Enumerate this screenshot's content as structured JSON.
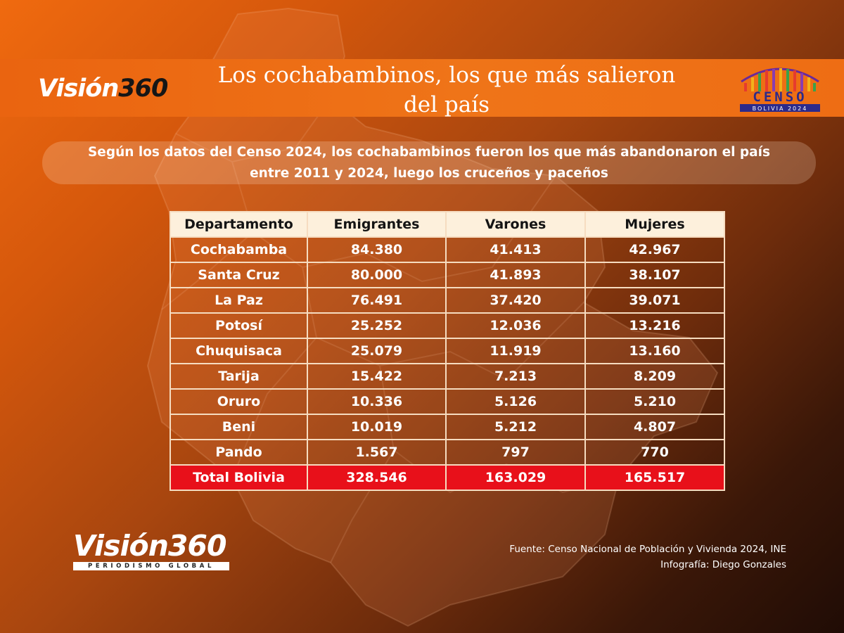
{
  "header": {
    "logo_word": "Visión",
    "logo_number": "360",
    "title_line1": "Los cochabambinos, los que más salieron",
    "title_line2": "del país",
    "censo_word": "CENSO",
    "censo_sub": "BOLIVIA 2024"
  },
  "subtitle": {
    "line1": "Según los datos del Censo 2024, los cochabambinos fueron los que más abandonaron el país",
    "line2": "entre 2011 y 2024, luego los cruceños y paceños"
  },
  "chart_data": {
    "type": "table",
    "columns": [
      "Departamento",
      "Emigrantes",
      "Varones",
      "Mujeres"
    ],
    "rows": [
      [
        "Cochabamba",
        "84.380",
        "41.413",
        "42.967"
      ],
      [
        "Santa Cruz",
        "80.000",
        "41.893",
        "38.107"
      ],
      [
        "La Paz",
        "76.491",
        "37.420",
        "39.071"
      ],
      [
        "Potosí",
        "25.252",
        "12.036",
        "13.216"
      ],
      [
        "Chuquisaca",
        "25.079",
        "11.919",
        "13.160"
      ],
      [
        "Tarija",
        "15.422",
        "7.213",
        "8.209"
      ],
      [
        "Oruro",
        "10.336",
        "5.126",
        "5.210"
      ],
      [
        "Beni",
        "10.019",
        "5.212",
        "4.807"
      ],
      [
        "Pando",
        "1.567",
        "797",
        "770"
      ]
    ],
    "total_row": [
      "Total Bolivia",
      "328.546",
      "163.029",
      "165.517"
    ]
  },
  "footer": {
    "logo_word": "Visión",
    "logo_number": "360",
    "tagline": "PERIODISMO GLOBAL",
    "source": "Fuente: Censo Nacional de Población y Vivienda 2024, INE",
    "credit": "Infografía: Diego Gonzales"
  },
  "colors": {
    "header_orange": "#ef7418",
    "total_red": "#e8101a",
    "table_header_bg": "#fdf0dc",
    "table_border": "#f6dcc0"
  },
  "icons": [
    "bolivia-map-silhouette",
    "censo-arch-logo"
  ]
}
